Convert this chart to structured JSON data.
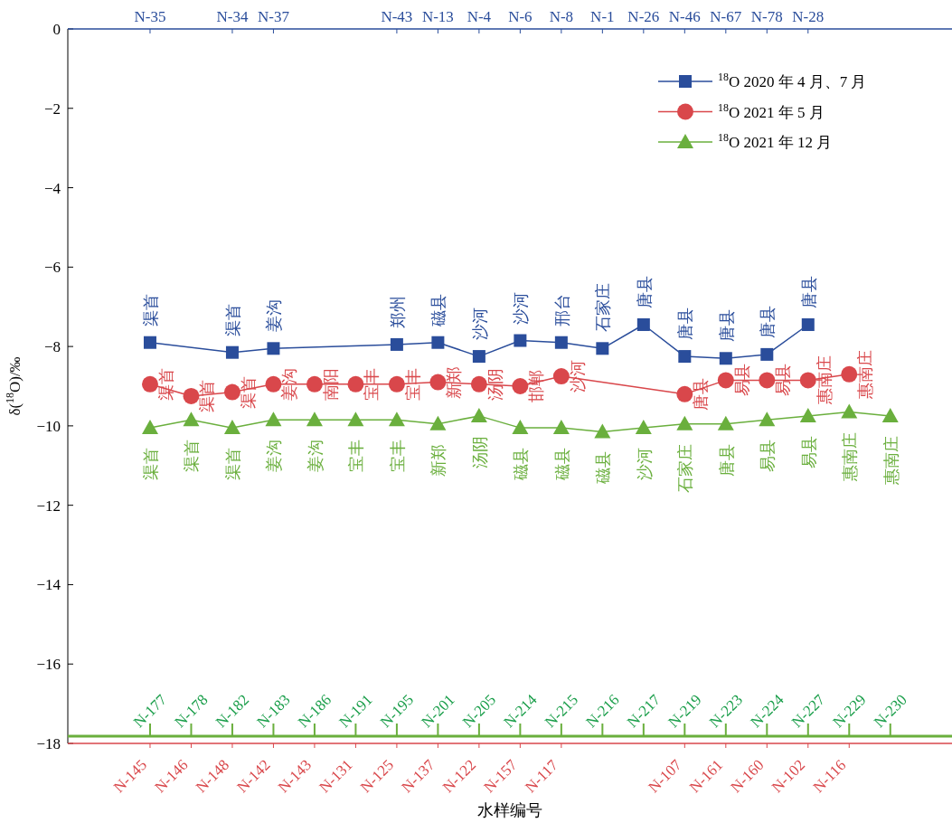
{
  "chart_data": {
    "type": "line",
    "xlabel": "水样编号",
    "ylabel": "δ($^{18}$O)/‰",
    "ylim": [
      -18,
      0
    ],
    "yticks": [
      0,
      {
        "value": -2,
        "label": "−2"
      },
      {
        "value": -4,
        "label": "−4"
      },
      {
        "value": -6,
        "label": "−6"
      },
      {
        "value": -8,
        "label": "−8"
      },
      {
        "value": -10,
        "label": "−10"
      },
      {
        "value": -12,
        "label": "−12"
      },
      {
        "value": -14,
        "label": "−14"
      },
      {
        "value": -16,
        "label": "−16"
      },
      {
        "value": -18,
        "label": "−18"
      }
    ],
    "categories": [
      "N-177",
      "N-178",
      "N-182",
      "N-183",
      "N-186",
      "N-191",
      "N-195",
      "N-201",
      "N-205",
      "N-214",
      "N-215",
      "N-216",
      "N-217",
      "N-219",
      "N-223",
      "N-224",
      "N-227",
      "N-229",
      "N-230"
    ],
    "annotations": [
      "N-35",
      "N-34",
      "N-37",
      "N-43",
      "N-13",
      "N-4",
      "N-6",
      "N-8",
      "N-1",
      "N-26",
      "N-46",
      "N-67",
      "N-78",
      "N-28",
      "N-145",
      "N-146",
      "N-148",
      "N-142",
      "N-143",
      "N-131",
      "N-125",
      "N-137",
      "N-122",
      "N-157",
      "N-117",
      "N-107",
      "N-161",
      "N-160",
      "N-102",
      "N-116"
    ],
    "legend": "top right",
    "grid": false,
    "series": [
      {
        "name": "$^{18}$O 2020 年 4 月、7 月",
        "color": "#2a4d9b",
        "marker": "square",
        "values": [
          -7.9,
          null,
          -8.15,
          -8.05,
          null,
          null,
          -7.95,
          -7.9,
          -8.25,
          -7.85,
          -7.9,
          -8.05,
          -7.45,
          -8.25,
          -8.3,
          -8.2,
          -7.45,
          null,
          null
        ],
        "value_labels": [
          "渠首",
          null,
          "渠首",
          "姜沟",
          null,
          null,
          "郑州",
          "磁县",
          "沙河",
          "沙河",
          "邢台",
          "石家庄",
          "唐县",
          "唐县",
          "唐县",
          "唐县",
          "唐县",
          null,
          null
        ]
      },
      {
        "name": "$^{18}$O 2021 年 5 月",
        "color": "#d9474b",
        "marker": "circle",
        "values": [
          -8.95,
          -9.25,
          -9.15,
          -8.95,
          -8.95,
          -8.95,
          -8.95,
          -8.9,
          -8.95,
          -9.0,
          -8.75,
          null,
          null,
          -9.2,
          -8.85,
          -8.85,
          -8.85,
          -8.7,
          null
        ],
        "value_labels": [
          "渠首",
          "渠首",
          "渠首",
          "姜沟",
          "南阳",
          "宝丰",
          "宝丰",
          "新郑",
          "汤阴",
          "邯郸",
          "沙河",
          null,
          null,
          "唐县",
          "易县",
          "易县",
          "惠南庄",
          "惠南庄",
          null
        ]
      },
      {
        "name": "$^{18}$O 2021 年 12 月",
        "color": "#6aaf3d",
        "marker": "triangle",
        "values": [
          -10.05,
          -9.85,
          -10.05,
          -9.85,
          -9.85,
          -9.85,
          -9.85,
          -9.95,
          -9.75,
          -10.05,
          -10.05,
          -10.15,
          -10.05,
          -9.95,
          -9.95,
          -9.85,
          -9.75,
          -9.65,
          -9.75
        ],
        "value_labels": [
          "渠首",
          "渠首",
          "渠首",
          "姜沟",
          "姜沟",
          "宝丰",
          "宝丰",
          "新郑",
          "汤阴",
          "磁县",
          "磁县",
          "磁县",
          "沙河",
          "石家庄",
          "唐县",
          "易县",
          "易县",
          "惠南庄",
          "惠南庄"
        ]
      }
    ]
  }
}
